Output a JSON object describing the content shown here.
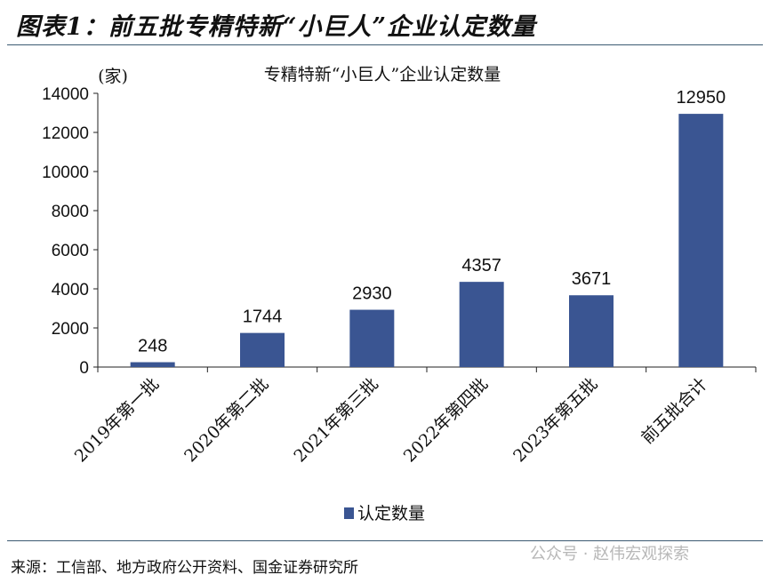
{
  "figure_title": "图表1：前五批专精特新“小巨人”企业认定数量",
  "source": "来源：工信部、地方政府公开资料、国金证券研究所",
  "watermark": "公众号 · 赵伟宏观探索",
  "chart_data": {
    "type": "bar",
    "title": "专精特新“小巨人”企业认定数量",
    "ylabel": "(家)",
    "xlabel": "",
    "categories": [
      "2019年第一批",
      "2020年第二批",
      "2021年第三批",
      "2022年第四批",
      "2023年第五批",
      "前五批合计"
    ],
    "series": [
      {
        "name": "认定数量",
        "values": [
          248,
          1744,
          2930,
          4357,
          3671,
          12950
        ],
        "color": "#3a5592"
      }
    ],
    "data_labels": [
      "248",
      "1744",
      "2930",
      "4357",
      "3671",
      "12950"
    ],
    "ylim": [
      0,
      14000
    ],
    "yticks": [
      "0",
      "2000",
      "4000",
      "6000",
      "8000",
      "10000",
      "12000",
      "14000"
    ],
    "grid": false,
    "legend": "bottom"
  }
}
